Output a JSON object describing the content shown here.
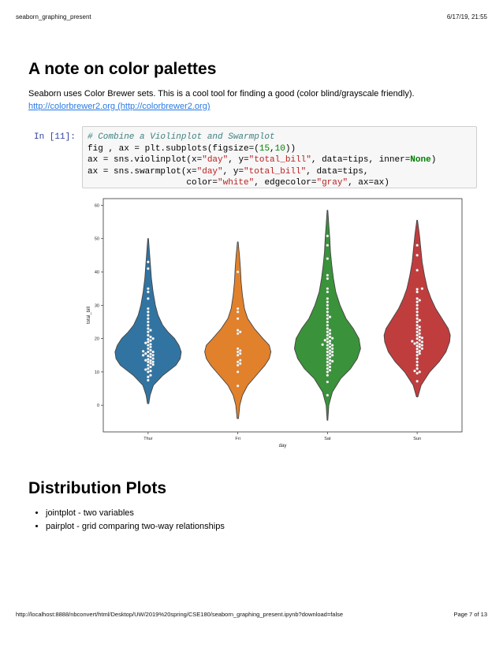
{
  "page_header": {
    "title": "seaborn_graphing_present",
    "datetime": "6/17/19, 21:55"
  },
  "section1": {
    "heading": "A note on color palettes",
    "text": "Seaborn uses Color Brewer sets. This is a cool tool for finding a good (color blind/grayscale friendly).",
    "link": "http://colorbrewer2.org (http://colorbrewer2.org)"
  },
  "cell": {
    "prompt": "In [11]:",
    "lines": [
      [
        {
          "t": "# Combine a Violinplot and Swarmplot",
          "c": "com"
        }
      ],
      [
        {
          "t": "fig , ax = plt.subplots(figsize=("
        },
        {
          "t": "15",
          "c": "num"
        },
        {
          "t": ","
        },
        {
          "t": "10",
          "c": "num"
        },
        {
          "t": "))"
        }
      ],
      [
        {
          "t": "ax = sns.violinplot(x="
        },
        {
          "t": "\"day\"",
          "c": "str"
        },
        {
          "t": ", y="
        },
        {
          "t": "\"total_bill\"",
          "c": "str"
        },
        {
          "t": ", data=tips, inner="
        },
        {
          "t": "None",
          "c": "kw"
        },
        {
          "t": ")"
        }
      ],
      [
        {
          "t": "ax = sns.swarmplot(x="
        },
        {
          "t": "\"day\"",
          "c": "str"
        },
        {
          "t": ", y="
        },
        {
          "t": "\"total_bill\"",
          "c": "str"
        },
        {
          "t": ", data=tips,"
        }
      ],
      [
        {
          "t": "                   color="
        },
        {
          "t": "\"white\"",
          "c": "str"
        },
        {
          "t": ", edgecolor="
        },
        {
          "t": "\"gray\"",
          "c": "str"
        },
        {
          "t": ", ax=ax)"
        }
      ]
    ]
  },
  "chart_data": {
    "type": "violin",
    "xlabel": "day",
    "ylabel": "total_bill",
    "ylim": [
      -8,
      62
    ],
    "yticks": [
      0,
      10,
      20,
      30,
      40,
      50,
      60
    ],
    "categories": [
      "Thur",
      "Fri",
      "Sat",
      "Sun"
    ],
    "colors": [
      "#3274a1",
      "#e1812c",
      "#3a923a",
      "#c03d3e"
    ],
    "violins": [
      {
        "day": "Thur",
        "extent": [
          0.5,
          50
        ],
        "profile": [
          [
            0.5,
            0.02
          ],
          [
            3,
            0.06
          ],
          [
            6,
            0.16
          ],
          [
            9,
            0.45
          ],
          [
            12,
            0.84
          ],
          [
            14,
            0.97
          ],
          [
            16,
            1.0
          ],
          [
            18,
            0.93
          ],
          [
            20,
            0.8
          ],
          [
            22,
            0.6
          ],
          [
            24,
            0.44
          ],
          [
            27,
            0.3
          ],
          [
            30,
            0.22
          ],
          [
            34,
            0.15
          ],
          [
            38,
            0.1
          ],
          [
            42,
            0.07
          ],
          [
            46,
            0.04
          ],
          [
            50,
            0.01
          ]
        ]
      },
      {
        "day": "Fri",
        "extent": [
          -4,
          49
        ],
        "profile": [
          [
            -4,
            0.02
          ],
          [
            0,
            0.06
          ],
          [
            3,
            0.14
          ],
          [
            6,
            0.3
          ],
          [
            9,
            0.56
          ],
          [
            12,
            0.82
          ],
          [
            14,
            0.95
          ],
          [
            16,
            1.0
          ],
          [
            18,
            0.95
          ],
          [
            20,
            0.76
          ],
          [
            23,
            0.5
          ],
          [
            26,
            0.3
          ],
          [
            29,
            0.2
          ],
          [
            33,
            0.14
          ],
          [
            37,
            0.1
          ],
          [
            41,
            0.08
          ],
          [
            45,
            0.05
          ],
          [
            49,
            0.01
          ]
        ]
      },
      {
        "day": "Sat",
        "extent": [
          -4.5,
          58.5
        ],
        "profile": [
          [
            -4.5,
            0.01
          ],
          [
            0,
            0.04
          ],
          [
            4,
            0.15
          ],
          [
            8,
            0.4
          ],
          [
            11,
            0.7
          ],
          [
            14,
            0.9
          ],
          [
            17,
            1.0
          ],
          [
            20,
            0.95
          ],
          [
            23,
            0.78
          ],
          [
            26,
            0.56
          ],
          [
            30,
            0.38
          ],
          [
            34,
            0.25
          ],
          [
            38,
            0.18
          ],
          [
            42,
            0.13
          ],
          [
            46,
            0.09
          ],
          [
            50,
            0.07
          ],
          [
            54,
            0.04
          ],
          [
            58.5,
            0.01
          ]
        ]
      },
      {
        "day": "Sun",
        "extent": [
          2.5,
          55.5
        ],
        "profile": [
          [
            2.5,
            0.02
          ],
          [
            6,
            0.12
          ],
          [
            10,
            0.38
          ],
          [
            13,
            0.66
          ],
          [
            16,
            0.87
          ],
          [
            19,
            0.98
          ],
          [
            21,
            1.0
          ],
          [
            23,
            0.94
          ],
          [
            26,
            0.75
          ],
          [
            29,
            0.56
          ],
          [
            32,
            0.42
          ],
          [
            35,
            0.31
          ],
          [
            39,
            0.22
          ],
          [
            43,
            0.15
          ],
          [
            47,
            0.11
          ],
          [
            51,
            0.07
          ],
          [
            55.5,
            0.01
          ]
        ]
      }
    ],
    "points": {
      "Thur": [
        7.5,
        8.5,
        9,
        10,
        10.3,
        10.7,
        11,
        11.5,
        12,
        12.2,
        12.6,
        13,
        13,
        13.4,
        13.5,
        13.8,
        14,
        14.5,
        14.8,
        15,
        15,
        15.4,
        15.5,
        16,
        16,
        16.2,
        16.5,
        17,
        17.5,
        18,
        18.3,
        18.7,
        19,
        19.4,
        19.8,
        20,
        20.5,
        21,
        22,
        22.5,
        23,
        24,
        25,
        26,
        27,
        28,
        29,
        32,
        34,
        35,
        41,
        43
      ],
      "Fri": [
        5.8,
        10,
        12,
        12.5,
        13,
        13.5,
        15,
        15.5,
        16,
        16.4,
        17,
        21.5,
        22,
        22.5,
        26,
        28,
        29,
        40
      ],
      "Sat": [
        3,
        7,
        9,
        10,
        10.5,
        11,
        11.5,
        12,
        12.5,
        13,
        13.2,
        13.5,
        14,
        14.5,
        15,
        15,
        15.5,
        16,
        16,
        16.4,
        17,
        17,
        17.5,
        18,
        18,
        18.2,
        18.5,
        19,
        19.3,
        19.5,
        20,
        20.1,
        20.5,
        21,
        21.5,
        22,
        22.5,
        23,
        24,
        25,
        26,
        26.5,
        27,
        28,
        29,
        30,
        31,
        32,
        34,
        35,
        38,
        39,
        44,
        48,
        50.8
      ],
      "Sun": [
        7.2,
        9.6,
        10,
        10.3,
        11,
        12,
        13,
        14,
        15,
        15.5,
        16,
        16.3,
        16.9,
        17,
        17.5,
        17.8,
        18,
        18.3,
        18.5,
        18.8,
        19,
        19.2,
        19.5,
        20,
        20.2,
        20.5,
        21,
        21.5,
        22,
        22.5,
        23,
        23.5,
        24,
        25,
        25.5,
        26,
        27,
        28,
        29,
        30,
        31,
        31.5,
        32,
        34,
        34.8,
        35,
        40.5,
        45,
        48
      ]
    }
  },
  "section2": {
    "heading": "Distribution Plots",
    "items": [
      "jointplot - two variables",
      "pairplot - grid comparing two-way relationships"
    ]
  },
  "page_footer": {
    "url": "http://localhost:8888/nbconvert/html/Desktop/UW/2019%20spring/CSE180/seaborn_graphing_present.ipynb?download=false",
    "page": "Page 7 of 13"
  }
}
